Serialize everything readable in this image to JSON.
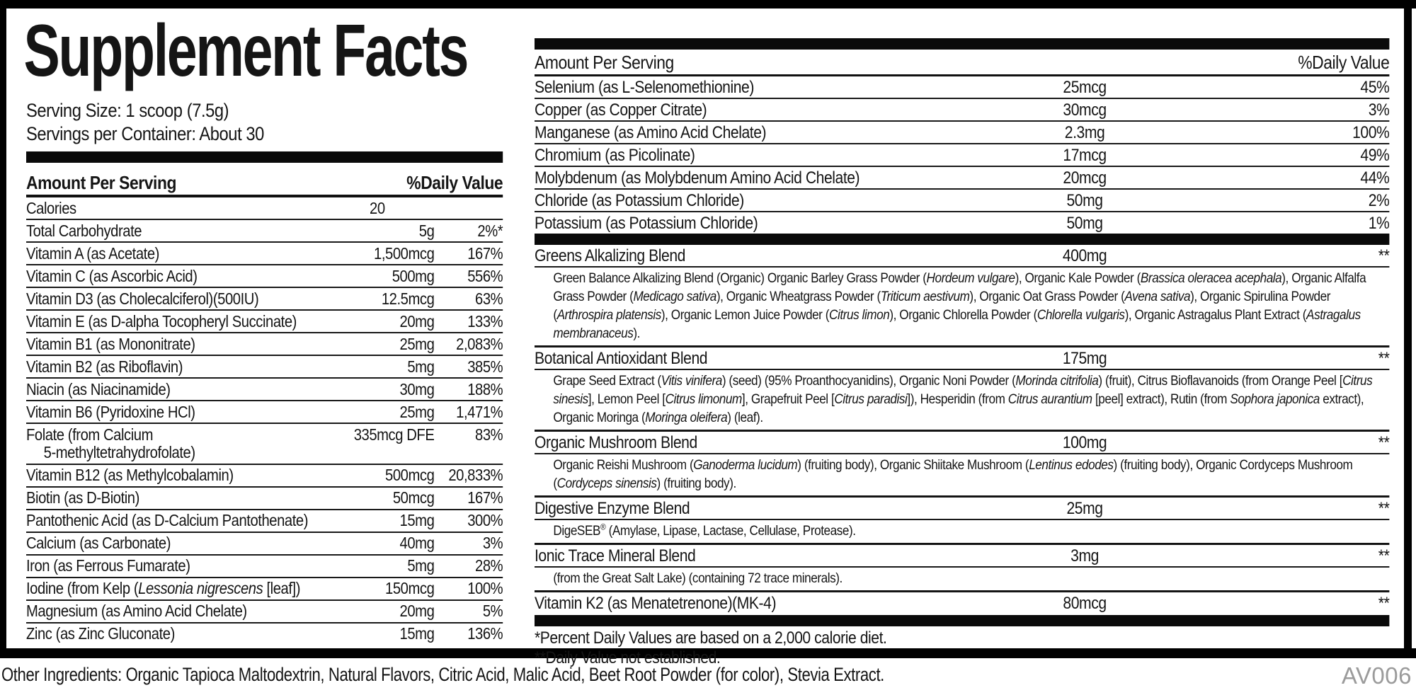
{
  "colors": {
    "bar_black": "#000000",
    "text": "#151515",
    "code_gray": "#9b9b9b"
  },
  "header": {
    "title": "Supplement Facts",
    "serving_size": "Serving Size: 1 scoop (7.5g)",
    "servings_per_container": "Servings per Container: About 30"
  },
  "labels": {
    "amount_per_serving": "Amount Per Serving",
    "daily_value": "%Daily Value"
  },
  "left_table": {
    "rows": [
      {
        "name": "Calories",
        "amount": "20",
        "dv": "",
        "center": true
      },
      {
        "name": "Total Carbohydrate",
        "amount": "5g",
        "dv": "2%*"
      },
      {
        "name": "Vitamin A (as Acetate)",
        "amount": "1,500mcg",
        "dv": "167%"
      },
      {
        "name": "Vitamin C (as Ascorbic Acid)",
        "amount": "500mg",
        "dv": "556%"
      },
      {
        "name": "Vitamin D3 (as Cholecalciferol)(500IU)",
        "amount": "12.5mcg",
        "dv": "63%"
      },
      {
        "name": "Vitamin E (as D-alpha Tocopheryl Succinate)",
        "amount": "20mg",
        "dv": "133%"
      },
      {
        "name": "Vitamin B1 (as Mononitrate)",
        "amount": "25mg",
        "dv": "2,083%"
      },
      {
        "name": "Vitamin B2 (as Riboflavin)",
        "amount": "5mg",
        "dv": "385%"
      },
      {
        "name": "Niacin (as Niacinamide)",
        "amount": "30mg",
        "dv": "188%"
      },
      {
        "name": "Vitamin B6 (Pyridoxine HCl)",
        "amount": "25mg",
        "dv": "1,471%"
      },
      {
        "name": "Folate (from Calcium",
        "name2": "5-methyltetrahydrofolate)",
        "amount": "335mcg DFE",
        "dv": "83%"
      },
      {
        "name": "Vitamin B12 (as Methylcobalamin)",
        "amount": "500mcg",
        "dv": "20,833%"
      },
      {
        "name": "Biotin (as D-Biotin)",
        "amount": "50mcg",
        "dv": "167%"
      },
      {
        "name": "Pantothenic Acid (as D-Calcium Pantothenate)",
        "amount": "15mg",
        "dv": "300%"
      },
      {
        "name": "Calcium (as Carbonate)",
        "amount": "40mg",
        "dv": "3%"
      },
      {
        "name": "Iron (as Ferrous Fumarate)",
        "amount": "5mg",
        "dv": "28%"
      },
      {
        "name": [
          {
            "t": "Iodine (from Kelp ("
          },
          {
            "t": "Lessonia nigrescens",
            "i": true
          },
          {
            "t": " [leaf])"
          }
        ],
        "amount": "150mcg",
        "dv": "100%"
      },
      {
        "name": "Magnesium (as Amino Acid Chelate)",
        "amount": "20mg",
        "dv": "5%"
      },
      {
        "name": "Zinc (as Zinc Gluconate)",
        "amount": "15mg",
        "dv": "136%"
      }
    ]
  },
  "right_table": {
    "rows": [
      {
        "name": "Selenium (as L-Selenomethionine)",
        "amount": "25mcg",
        "dv": "45%"
      },
      {
        "name": "Copper (as Copper Citrate)",
        "amount": "30mcg",
        "dv": "3%"
      },
      {
        "name": "Manganese (as Amino Acid Chelate)",
        "amount": "2.3mg",
        "dv": "100%"
      },
      {
        "name": "Chromium (as Picolinate)",
        "amount": "17mcg",
        "dv": "49%"
      },
      {
        "name": "Molybdenum (as Molybdenum Amino Acid Chelate)",
        "amount": "20mcg",
        "dv": "44%"
      },
      {
        "name": "Chloride (as Potassium Chloride)",
        "amount": "50mg",
        "dv": "2%"
      },
      {
        "name": "Potassium (as Potassium Chloride)",
        "amount": "50mg",
        "dv": "1%"
      }
    ],
    "blends": [
      {
        "name": "Greens Alkalizing Blend",
        "amount": "400mg",
        "dv": "**",
        "desc": [
          {
            "t": "Green Balance Alkalizing Blend (Organic) Organic Barley Grass Powder ("
          },
          {
            "t": "Hordeum vulgare",
            "i": true
          },
          {
            "t": "), Organic Kale Powder ("
          },
          {
            "t": "Brassica oleracea acephala",
            "i": true
          },
          {
            "t": "), Organic Alfalfa Grass Powder ("
          },
          {
            "t": "Medicago sativa",
            "i": true
          },
          {
            "t": "), Organic Wheatgrass Powder ("
          },
          {
            "t": "Triticum aestivum",
            "i": true
          },
          {
            "t": "), Organic Oat Grass Powder ("
          },
          {
            "t": "Avena sativa",
            "i": true
          },
          {
            "t": "), Organic Spirulina Powder ("
          },
          {
            "t": "Arthrospira platensis",
            "i": true
          },
          {
            "t": "), Organic Lemon Juice Powder ("
          },
          {
            "t": "Citrus limon",
            "i": true
          },
          {
            "t": "), Organic Chlorella Powder ("
          },
          {
            "t": "Chlorella vulgaris",
            "i": true
          },
          {
            "t": "), Organic Astragalus Plant Extract ("
          },
          {
            "t": "Astragalus membranaceus",
            "i": true
          },
          {
            "t": ")."
          }
        ]
      },
      {
        "name": "Botanical Antioxidant Blend",
        "amount": "175mg",
        "dv": "**",
        "desc": [
          {
            "t": "Grape Seed Extract ("
          },
          {
            "t": "Vitis vinifera",
            "i": true
          },
          {
            "t": ") (seed) (95% Proanthocyanidins), Organic Noni Powder ("
          },
          {
            "t": "Morinda citrifolia",
            "i": true
          },
          {
            "t": ") (fruit), Citrus Bioflavanoids (from Orange Peel ["
          },
          {
            "t": "Citrus sinesis",
            "i": true
          },
          {
            "t": "], Lemon Peel ["
          },
          {
            "t": "Citrus limonum",
            "i": true
          },
          {
            "t": "], Grapefruit Peel ["
          },
          {
            "t": "Citrus paradisi",
            "i": true
          },
          {
            "t": "]), Hesperidin (from "
          },
          {
            "t": "Citrus aurantium",
            "i": true
          },
          {
            "t": " [peel] extract), Rutin (from "
          },
          {
            "t": "Sophora japonica",
            "i": true
          },
          {
            "t": " extract), Organic Moringa ("
          },
          {
            "t": "Moringa oleifera",
            "i": true
          },
          {
            "t": ") (leaf)."
          }
        ]
      },
      {
        "name": "Organic Mushroom Blend",
        "amount": "100mg",
        "dv": "**",
        "desc": [
          {
            "t": "Organic Reishi Mushroom ("
          },
          {
            "t": "Ganoderma lucidum",
            "i": true
          },
          {
            "t": ") (fruiting body), Organic Shiitake Mushroom ("
          },
          {
            "t": "Lentinus edodes",
            "i": true
          },
          {
            "t": ") (fruiting body), Organic Cordyceps Mushroom ("
          },
          {
            "t": "Cordyceps sinensis",
            "i": true
          },
          {
            "t": ") (fruiting body)."
          }
        ]
      },
      {
        "name": "Digestive Enzyme Blend",
        "amount": "25mg",
        "dv": "**",
        "desc": [
          {
            "t": "DigeSEB"
          },
          {
            "t": "®",
            "sup": true
          },
          {
            "t": " (Amylase, Lipase, Lactase, Cellulase, Protease)."
          }
        ]
      },
      {
        "name": "Ionic Trace Mineral Blend",
        "amount": "3mg",
        "dv": "**",
        "desc": [
          {
            "t": "(from the Great Salt Lake) (containing 72 trace minerals)."
          }
        ]
      },
      {
        "name": "Vitamin K2 (as Menatetrenone)(MK-4)",
        "amount": "80mcg",
        "dv": "**"
      }
    ],
    "footnotes": [
      "*Percent Daily Values are based on a 2,000 calorie diet.",
      "**Daily Value not established."
    ]
  },
  "footer": {
    "other_ingredients": "Other Ingredients: Organic Tapioca Maltodextrin, Natural Flavors, Citric Acid, Malic Acid, Beet Root Powder (for color), Stevia Extract.",
    "code": "AV006"
  }
}
